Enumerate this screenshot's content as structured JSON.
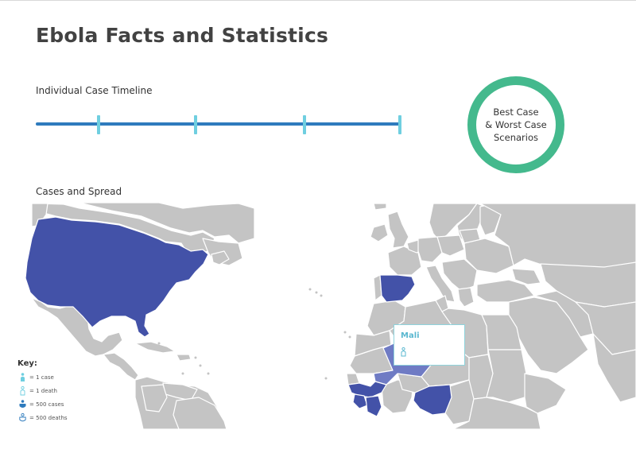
{
  "page": {
    "title": "Ebola Facts and Statistics"
  },
  "timeline": {
    "label": "Individual Case Timeline",
    "tick_count": 4
  },
  "scenario_button": {
    "lines": [
      "Best Case",
      "& Worst Case",
      "Scenarios"
    ]
  },
  "map": {
    "label": "Cases and Spread",
    "highlighted_regions": [
      "USA",
      "Spain",
      "Mali",
      "Guinea",
      "Sierra Leone",
      "Liberia",
      "Nigeria"
    ],
    "colors": {
      "land": "#c4c4c4",
      "border": "#ffffff",
      "cases": "#4352a8",
      "cases_light": "#6f7bc4",
      "accent": "#6fcfe0",
      "popup_text": "#5bb8d0"
    },
    "popup": {
      "title": "Mali",
      "icon": "person-outline-icon"
    }
  },
  "key": {
    "title": "Key:",
    "items": [
      {
        "icon": "person-filled-icon",
        "label": "= 1 case"
      },
      {
        "icon": "person-outline-icon",
        "label": "= 1 death"
      },
      {
        "icon": "shield-filled-icon",
        "label": "= 500 cases"
      },
      {
        "icon": "shield-outline-icon",
        "label": "= 500 deaths"
      }
    ]
  }
}
